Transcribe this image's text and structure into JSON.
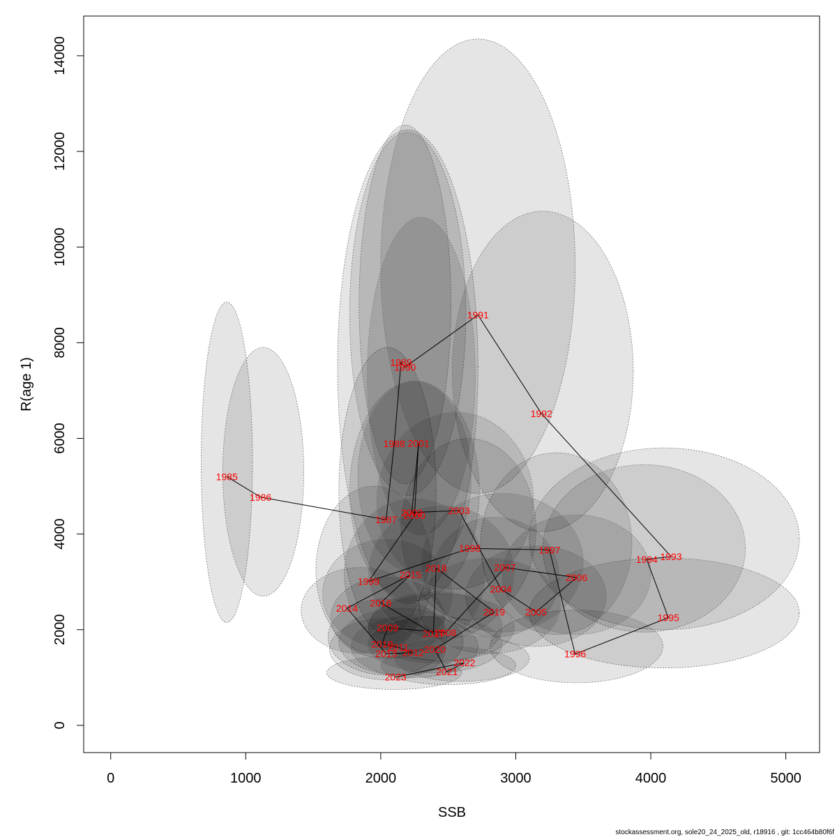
{
  "chart_data": {
    "type": "scatter",
    "xlabel": "SSB",
    "ylabel": "R(age 1)",
    "xlim": [
      -200,
      5250
    ],
    "ylim": [
      -570,
      14830
    ],
    "x_ticks": [
      "0",
      "1000",
      "2000",
      "3000",
      "4000",
      "5000"
    ],
    "y_ticks": [
      "0",
      "2000",
      "4000",
      "6000",
      "8000",
      "10000",
      "12000",
      "14000"
    ],
    "points_connected": true,
    "label_color": "#ff0000",
    "ellipse_fill": "rgba(0,0,0,0.1)",
    "points": [
      {
        "year": "1985",
        "x": 860,
        "y": 5200,
        "ell": {
          "cx": 860,
          "cy": 5500,
          "rx": 190,
          "ry": 3350,
          "angle": 0
        }
      },
      {
        "year": "1986",
        "x": 1110,
        "y": 4770,
        "ell": {
          "cx": 1130,
          "cy": 5300,
          "rx": 300,
          "ry": 2600,
          "angle": 0
        }
      },
      {
        "year": "1987",
        "x": 2040,
        "y": 4300,
        "ell": {
          "cx": 2050,
          "cy": 4900,
          "rx": 360,
          "ry": 3000,
          "angle": 0
        }
      },
      {
        "year": "1988",
        "x": 2100,
        "y": 5890,
        "ell": {
          "cx": 2200,
          "cy": 7500,
          "rx": 520,
          "ry": 4950,
          "angle": 0
        }
      },
      {
        "year": "1989",
        "x": 2150,
        "y": 7590,
        "ell": {
          "cx": 2180,
          "cy": 8800,
          "rx": 340,
          "ry": 3750,
          "angle": 0
        }
      },
      {
        "year": "1990",
        "x": 2180,
        "y": 7490,
        "ell": {
          "cx": 2200,
          "cy": 8600,
          "rx": 430,
          "ry": 3800,
          "angle": 0
        }
      },
      {
        "year": "1991",
        "x": 2720,
        "y": 8580,
        "ell": {
          "cx": 2720,
          "cy": 9600,
          "rx": 720,
          "ry": 4750,
          "angle": 0
        }
      },
      {
        "year": "1992",
        "x": 3190,
        "y": 6520,
        "ell": {
          "cx": 3200,
          "cy": 7400,
          "rx": 670,
          "ry": 3350,
          "angle": 0
        }
      },
      {
        "year": "1993",
        "x": 4150,
        "y": 3530,
        "ell": {
          "cx": 4100,
          "cy": 3900,
          "rx": 1000,
          "ry": 1900,
          "angle": 0
        }
      },
      {
        "year": "1994",
        "x": 3970,
        "y": 3470,
        "ell": {
          "cx": 3950,
          "cy": 3700,
          "rx": 750,
          "ry": 1750,
          "angle": 0
        }
      },
      {
        "year": "1995",
        "x": 4130,
        "y": 2250,
        "ell": {
          "cx": 4100,
          "cy": 2350,
          "rx": 1000,
          "ry": 1150,
          "angle": 0
        }
      },
      {
        "year": "1996",
        "x": 3440,
        "y": 1490,
        "ell": {
          "cx": 3450,
          "cy": 1650,
          "rx": 640,
          "ry": 760,
          "angle": 0
        }
      },
      {
        "year": "1997",
        "x": 3250,
        "y": 3670,
        "ell": {
          "cx": 3300,
          "cy": 3800,
          "rx": 560,
          "ry": 1900,
          "angle": 0
        }
      },
      {
        "year": "1998",
        "x": 2660,
        "y": 3700,
        "ell": {
          "cx": 2650,
          "cy": 4100,
          "rx": 500,
          "ry": 1900,
          "angle": 0
        }
      },
      {
        "year": "1999",
        "x": 1910,
        "y": 3010,
        "ell": {
          "cx": 1950,
          "cy": 3250,
          "rx": 430,
          "ry": 1750,
          "angle": 0
        }
      },
      {
        "year": "2000",
        "x": 2250,
        "y": 4390,
        "ell": {
          "cx": 2250,
          "cy": 4900,
          "rx": 480,
          "ry": 2300,
          "angle": 0
        }
      },
      {
        "year": "2001",
        "x": 2280,
        "y": 5900,
        "ell": {
          "cx": 2300,
          "cy": 7300,
          "rx": 400,
          "ry": 3320,
          "angle": 0
        }
      },
      {
        "year": "2002",
        "x": 2230,
        "y": 4450,
        "ell": {
          "cx": 2250,
          "cy": 5200,
          "rx": 420,
          "ry": 2000,
          "angle": 0
        }
      },
      {
        "year": "2003",
        "x": 2580,
        "y": 4490,
        "ell": {
          "cx": 2550,
          "cy": 4700,
          "rx": 580,
          "ry": 1850,
          "angle": 0
        }
      },
      {
        "year": "2004",
        "x": 2890,
        "y": 2850,
        "ell": {
          "cx": 2850,
          "cy": 3100,
          "rx": 470,
          "ry": 1250,
          "angle": 0
        }
      },
      {
        "year": "2005",
        "x": 3150,
        "y": 2370,
        "ell": {
          "cx": 3150,
          "cy": 2700,
          "rx": 520,
          "ry": 1050,
          "angle": 0
        }
      },
      {
        "year": "2006",
        "x": 3450,
        "y": 3090,
        "ell": {
          "cx": 3450,
          "cy": 3150,
          "rx": 550,
          "ry": 1250,
          "angle": 0
        }
      },
      {
        "year": "2007",
        "x": 2920,
        "y": 3300,
        "ell": {
          "cx": 2900,
          "cy": 3400,
          "rx": 600,
          "ry": 1450,
          "angle": 0
        }
      },
      {
        "year": "2008",
        "x": 2480,
        "y": 1940,
        "ell": {
          "cx": 2450,
          "cy": 2050,
          "rx": 540,
          "ry": 700,
          "angle": 0
        }
      },
      {
        "year": "2009",
        "x": 2050,
        "y": 2040,
        "ell": {
          "cx": 2050,
          "cy": 2250,
          "rx": 420,
          "ry": 850,
          "angle": 0
        }
      },
      {
        "year": "2010",
        "x": 2010,
        "y": 1700,
        "ell": {
          "cx": 2050,
          "cy": 1850,
          "rx": 440,
          "ry": 800,
          "angle": 0
        }
      },
      {
        "year": "2011",
        "x": 2130,
        "y": 1630,
        "ell": {
          "cx": 2150,
          "cy": 1750,
          "rx": 460,
          "ry": 700,
          "angle": 0
        }
      },
      {
        "year": "2012",
        "x": 2240,
        "y": 1520,
        "ell": {
          "cx": 2250,
          "cy": 1650,
          "rx": 470,
          "ry": 650,
          "angle": 0
        }
      },
      {
        "year": "2013",
        "x": 2040,
        "y": 1500,
        "ell": {
          "cx": 2050,
          "cy": 1600,
          "rx": 430,
          "ry": 650,
          "angle": 0
        }
      },
      {
        "year": "2014",
        "x": 1750,
        "y": 2450,
        "ell": {
          "cx": 1850,
          "cy": 2400,
          "rx": 440,
          "ry": 900,
          "angle": 0
        }
      },
      {
        "year": "2015",
        "x": 2220,
        "y": 3150,
        "ell": {
          "cx": 2250,
          "cy": 3150,
          "rx": 520,
          "ry": 1600,
          "angle": 0
        }
      },
      {
        "year": "2016",
        "x": 2000,
        "y": 2560,
        "ell": {
          "cx": 2050,
          "cy": 2750,
          "rx": 480,
          "ry": 1150,
          "angle": 0
        }
      },
      {
        "year": "2017",
        "x": 2390,
        "y": 1920,
        "ell": {
          "cx": 2400,
          "cy": 2050,
          "rx": 500,
          "ry": 750,
          "angle": 0
        }
      },
      {
        "year": "2018",
        "x": 2410,
        "y": 3290,
        "ell": {
          "cx": 2450,
          "cy": 3200,
          "rx": 540,
          "ry": 1400,
          "angle": 0
        }
      },
      {
        "year": "2019",
        "x": 2840,
        "y": 2370,
        "ell": {
          "cx": 2800,
          "cy": 2500,
          "rx": 530,
          "ry": 1000,
          "angle": 0
        }
      },
      {
        "year": "2020",
        "x": 2400,
        "y": 1590,
        "ell": {
          "cx": 2400,
          "cy": 1700,
          "rx": 500,
          "ry": 600,
          "angle": 0
        }
      },
      {
        "year": "2021",
        "x": 2490,
        "y": 1120,
        "ell": {
          "cx": 2500,
          "cy": 1250,
          "rx": 500,
          "ry": 400,
          "angle": 0
        }
      },
      {
        "year": "2022",
        "x": 2620,
        "y": 1310,
        "ell": {
          "cx": 2600,
          "cy": 1400,
          "rx": 500,
          "ry": 480,
          "angle": 0
        }
      },
      {
        "year": "2023",
        "x": 2110,
        "y": 1010,
        "ell": {
          "cx": 2100,
          "cy": 1100,
          "rx": 500,
          "ry": 350,
          "angle": 0
        }
      }
    ]
  },
  "footer": "stockassessment.org, sole20_24_2025_old, r18916 , git: 1cc464b80f6f"
}
